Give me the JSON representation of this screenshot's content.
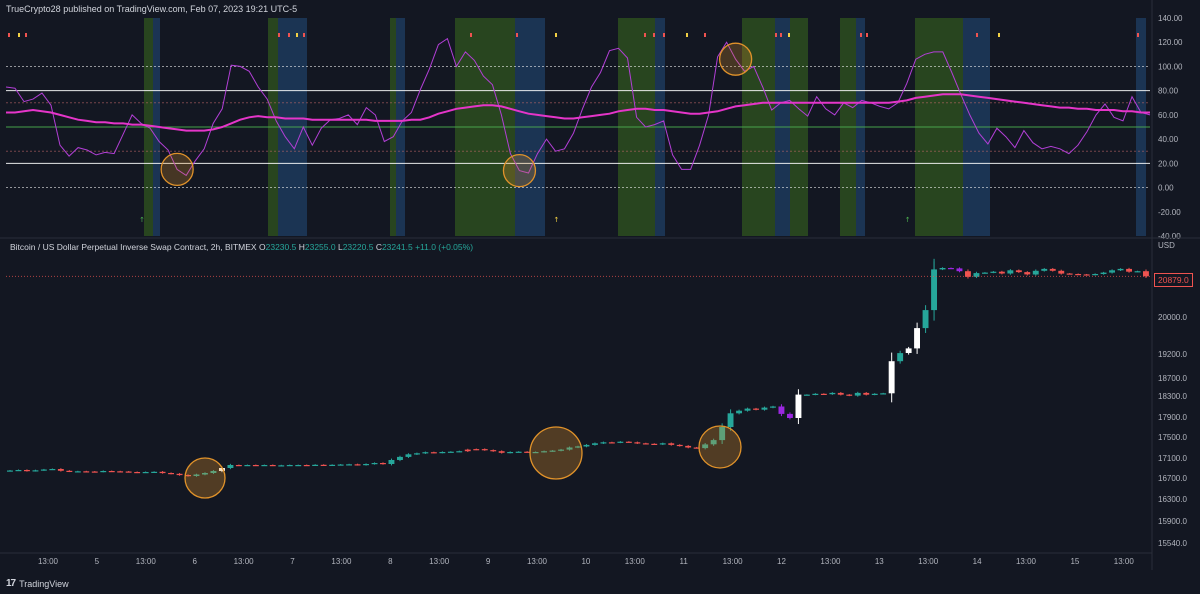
{
  "header": {
    "publisher_line": "TrueCrypto28 published on TradingView.com, Feb 07, 2023 19:21 UTC-5"
  },
  "symbol_legend": {
    "name": "Bitcoin / US Dollar Perpetual Inverse Swap Contract, 2h, BITMEX",
    "open_label": "O",
    "open": "23230.5",
    "high_label": "H",
    "high": "23255.0",
    "low_label": "L",
    "low": "23220.5",
    "close_label": "C",
    "close": "23241.5",
    "change": "+11.0 (+0.05%)"
  },
  "current_price_tag": "20879.0",
  "footer": {
    "logo": "17",
    "brand": "TradingView"
  },
  "colors": {
    "background": "#131722",
    "oscillator": "#b23fd6",
    "signal": "#e535c9",
    "hline_white": "#ffffff",
    "hline_green": "#4caf50",
    "band_green": "#2d4d1f",
    "band_blue": "#1d3a5c",
    "candle_up": "#26a69a",
    "candle_down": "#ef5350",
    "candle_white": "#ffffff",
    "candle_purple": "#9b27e0",
    "circle": "#e0922a"
  },
  "chart_data": [
    {
      "type": "line",
      "title": "",
      "y_axis_ticks": [
        "140.00",
        "120.00",
        "100.00",
        "80.00",
        "60.00",
        "40.00",
        "20.00",
        "0.00",
        "-20.00",
        "-40.00"
      ],
      "ylim": [
        -40,
        140
      ],
      "horizontal_levels": [
        100,
        80,
        70,
        50,
        30,
        20,
        0
      ],
      "series": [
        {
          "values": [
            83,
            82,
            71,
            73,
            78,
            68,
            35,
            26,
            33,
            31,
            27,
            29,
            28,
            44,
            60,
            53,
            49,
            38,
            31,
            15,
            10,
            22,
            32,
            53,
            65,
            101,
            100,
            96,
            83,
            73,
            55,
            42,
            32,
            50,
            35,
            49,
            56,
            57,
            60,
            52,
            66,
            60,
            38,
            42,
            55,
            62,
            81,
            98,
            118,
            123,
            100,
            112,
            105,
            92,
            85,
            60,
            28,
            14,
            12,
            28,
            40,
            30,
            32,
            45,
            65,
            83,
            95,
            113,
            115,
            107,
            58,
            50,
            52,
            55,
            27,
            15,
            15,
            35,
            60,
            108,
            120,
            106,
            96,
            100,
            83,
            64,
            70,
            72,
            65,
            59,
            75,
            65,
            60,
            70,
            66,
            72,
            70,
            67,
            65,
            70,
            86,
            106,
            110,
            112,
            112,
            95,
            77,
            60,
            45,
            36,
            49,
            42,
            33,
            47,
            37,
            32,
            34,
            32,
            28,
            35,
            46,
            60,
            69,
            58,
            55,
            75,
            62,
            60
          ]
        },
        {
          "values": [
            62,
            62,
            63,
            64,
            63,
            62,
            60,
            58,
            56,
            55,
            54,
            54,
            53,
            53,
            52,
            52,
            51,
            50,
            49,
            48,
            47,
            47,
            47,
            48,
            50,
            53,
            56,
            58,
            59,
            58,
            58,
            57,
            57,
            57,
            56,
            56,
            56,
            56,
            56,
            56,
            56,
            55,
            55,
            55,
            55,
            56,
            56,
            58,
            61,
            63,
            65,
            66,
            67,
            68,
            68,
            67,
            65,
            63,
            61,
            60,
            59,
            58,
            57,
            57,
            58,
            59,
            60,
            61,
            63,
            64,
            65,
            65,
            64,
            64,
            63,
            62,
            61,
            61,
            62,
            63,
            65,
            67,
            68,
            69,
            70,
            70,
            70,
            70,
            70,
            70,
            70,
            70,
            70,
            70,
            70,
            70,
            70,
            70,
            70,
            71,
            72,
            74,
            75,
            76,
            77,
            77,
            77,
            76,
            75,
            74,
            73,
            72,
            71,
            70,
            69,
            68,
            67,
            66,
            66,
            65,
            65,
            64,
            64,
            64,
            63,
            63,
            62,
            62
          ]
        }
      ],
      "markers": [
        {
          "x": 15,
          "label": "↑"
        },
        {
          "x": 61,
          "label": "↑"
        },
        {
          "x": 100,
          "label": "↑"
        }
      ],
      "circled_lows": [
        19,
        57,
        81
      ]
    },
    {
      "type": "candlestick",
      "y_axis_label": "USD",
      "y_axis_ticks": [
        "20000.0",
        "19200.0",
        "18700.0",
        "18300.0",
        "17900.0",
        "17500.0",
        "17100.0",
        "16700.0",
        "16300.0",
        "15900.0",
        "15540.0"
      ],
      "x_axis_ticks": [
        "13:00",
        "5",
        "13:00",
        "6",
        "13:00",
        "7",
        "13:00",
        "8",
        "13:00",
        "9",
        "13:00",
        "10",
        "13:00",
        "11",
        "13:00",
        "12",
        "13:00",
        "13",
        "13:00",
        "14",
        "13:00",
        "15",
        "13:00"
      ],
      "close_series": [
        16850,
        16860,
        16840,
        16855,
        16870,
        16880,
        16845,
        16830,
        16835,
        16830,
        16825,
        16840,
        16835,
        16830,
        16820,
        16810,
        16820,
        16825,
        16800,
        16785,
        16760,
        16740,
        16770,
        16800,
        16840,
        16900,
        16960,
        16955,
        16960,
        16955,
        16960,
        16950,
        16955,
        16960,
        16960,
        16955,
        16965,
        16960,
        16965,
        16970,
        16975,
        16960,
        16980,
        17000,
        16980,
        17060,
        17120,
        17170,
        17190,
        17210,
        17200,
        17215,
        17220,
        17230,
        17260,
        17270,
        17250,
        17230,
        17200,
        17215,
        17220,
        17210,
        17215,
        17230,
        17240,
        17260,
        17300,
        17320,
        17350,
        17380,
        17400,
        17395,
        17410,
        17400,
        17380,
        17370,
        17360,
        17380,
        17350,
        17330,
        17300,
        17290,
        17360,
        17440,
        17700,
        17970,
        18020,
        18060,
        18040,
        18080,
        18100,
        17960,
        17880,
        18330,
        18330,
        18350,
        18340,
        18370,
        18330,
        18310,
        18370,
        18330,
        18350,
        18360,
        19050,
        19220,
        19320,
        19760,
        20150,
        21030,
        21060,
        21050,
        20990,
        20870,
        20950,
        20960,
        20980,
        20940,
        21010,
        20970,
        20920,
        21000,
        21040,
        21000,
        20940,
        20930,
        20920,
        20910,
        20930,
        20960,
        21010,
        21040,
        20980,
        20990,
        20879
      ],
      "current_price": 20879.0
    }
  ]
}
